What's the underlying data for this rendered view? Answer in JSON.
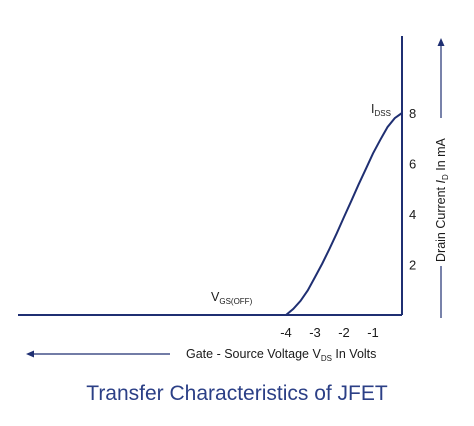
{
  "chart_data": {
    "type": "line",
    "title": "Transfer Characteristics of JFET",
    "xlabel": "Gate - Source Voltage V_DS In Volts",
    "xlabel_parts": {
      "main": "Gate - Source Voltage V",
      "sub": "DS",
      "tail": " In Volts"
    },
    "ylabel": "Drain Current I_D In mA",
    "ylabel_parts": {
      "main": "Drain Current ",
      "italic": "I",
      "sub": "D",
      "tail": " In mA"
    },
    "x_ticks": [
      "-4",
      "-3",
      "-2",
      "-1"
    ],
    "y_ticks": [
      "2",
      "4",
      "6",
      "8"
    ],
    "xlim": [
      -5.2,
      0
    ],
    "ylim": [
      0,
      8
    ],
    "series": [
      {
        "color": "#1f2f72",
        "points": [
          [
            -5.6,
            0
          ],
          [
            -4,
            0
          ],
          [
            -3.75,
            0.24
          ],
          [
            -3.5,
            0.56
          ],
          [
            -3.25,
            0.98
          ],
          [
            -3,
            1.5
          ],
          [
            -2.75,
            2.04
          ],
          [
            -2.5,
            2.62
          ],
          [
            -2.25,
            3.24
          ],
          [
            -2,
            3.88
          ],
          [
            -1.75,
            4.52
          ],
          [
            -1.5,
            5.16
          ],
          [
            -1.25,
            5.78
          ],
          [
            -1,
            6.4
          ],
          [
            -0.75,
            6.94
          ],
          [
            -0.5,
            7.44
          ],
          [
            -0.25,
            7.8
          ],
          [
            0,
            8
          ]
        ]
      }
    ],
    "annotations": [
      {
        "text": "I",
        "sub": "DSS",
        "x": 0,
        "y": 8
      },
      {
        "text": "V",
        "sub": "GS(OFF)",
        "x": -4,
        "y": 0
      }
    ],
    "colors": {
      "axis": "#1f2f72",
      "title": "#2b3f86",
      "text": "#1a1a1a"
    }
  }
}
